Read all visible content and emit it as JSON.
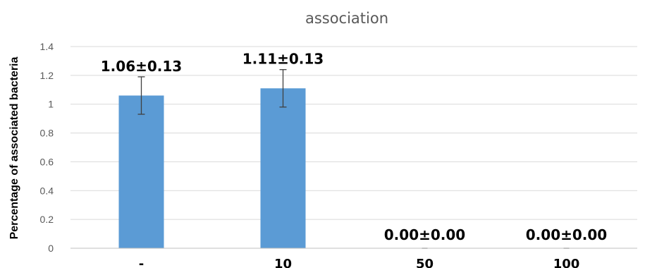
{
  "chart_data": {
    "type": "bar",
    "title": "association",
    "ylabel": "Percentage of associated bacteria",
    "xlabel": "",
    "categories": [
      "-",
      "10",
      "50",
      "100"
    ],
    "values": [
      1.06,
      1.11,
      0.0,
      0.0
    ],
    "errors": [
      0.13,
      0.13,
      0.0,
      0.0
    ],
    "data_labels": [
      "1.06±0.13",
      "1.11±0.13",
      "0.00±0.00",
      "0.00±0.00"
    ],
    "ylim": [
      0,
      1.4
    ],
    "yticks": [
      "0",
      "0.2",
      "0.4",
      "0.6",
      "0.8",
      "1",
      "1.2",
      "1.4"
    ],
    "grid": true,
    "legend": "none",
    "bar_color": "#5b9bd5"
  }
}
